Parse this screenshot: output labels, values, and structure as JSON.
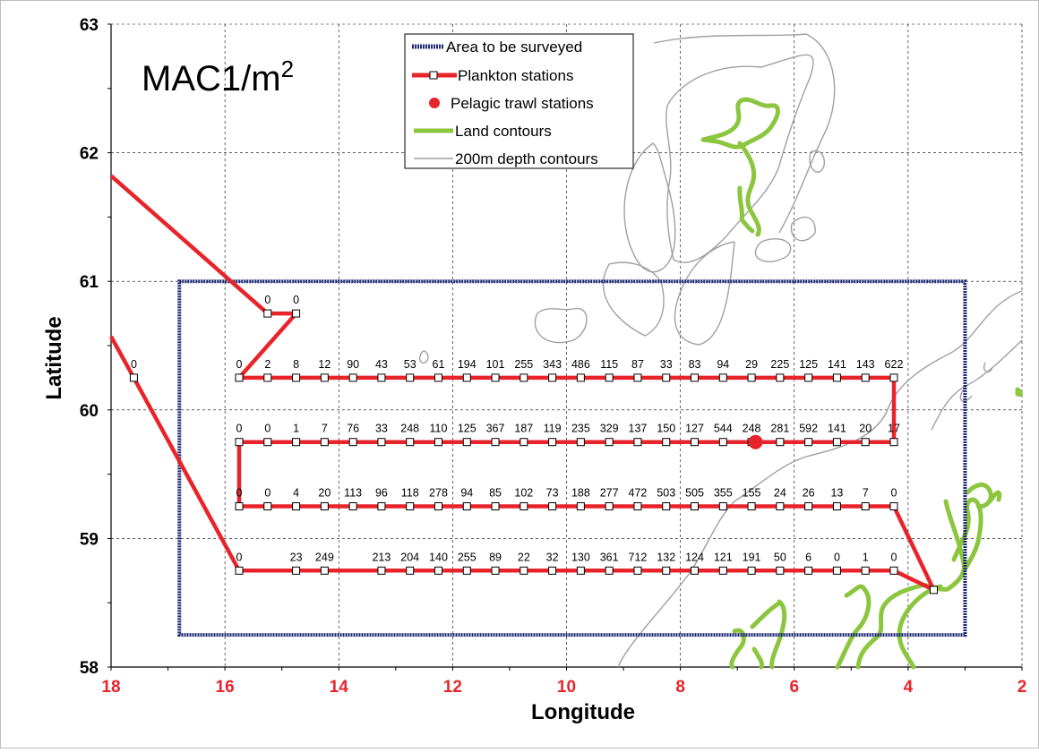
{
  "chart_data": {
    "type": "line",
    "title": "MAC1/m",
    "title_superscript": "2",
    "xlabel": "Longitude",
    "ylabel": "Latitude",
    "xlim": [
      18,
      2
    ],
    "ylim": [
      58,
      63
    ],
    "x_ticks": [
      "18",
      "16",
      "14",
      "12",
      "10",
      "8",
      "6",
      "4",
      "2"
    ],
    "y_ticks": [
      "63",
      "62",
      "61",
      "60",
      "59",
      "58"
    ],
    "grid": true,
    "legend_position": "top-center",
    "colors": {
      "area": "#1f2a78",
      "plankton": "#e8242a",
      "trawl": "#e8242a",
      "land": "#8cc63f",
      "depth": "#a0a0a0",
      "x_tick_color": "#e8242a"
    },
    "legend": [
      {
        "label": "Area to be surveyed",
        "type": "area"
      },
      {
        "label": "Plankton stations",
        "type": "plankton"
      },
      {
        "label": "Pelagic trawl stations",
        "type": "trawl"
      },
      {
        "label": "Land contours",
        "type": "land"
      },
      {
        "label": "200m depth contours",
        "type": "depth"
      }
    ],
    "survey_area": {
      "lon_min": 3.0,
      "lon_max": 16.8,
      "lat_min": 58.25,
      "lat_max": 61.0
    },
    "transects": [
      {
        "lat": 60.75,
        "lon": [
          15.25,
          14.75
        ],
        "values": [
          "0",
          "0"
        ]
      },
      {
        "lat": 60.25,
        "lon": [
          15.75,
          15.25,
          14.75,
          14.25,
          13.75,
          13.25,
          12.75,
          12.25,
          11.75,
          11.25,
          10.75,
          10.25,
          9.75,
          9.25,
          8.75,
          8.25,
          7.75,
          7.25,
          6.75,
          6.25,
          5.75,
          5.25,
          4.75,
          4.25
        ],
        "values": [
          "0",
          "2",
          "8",
          "12",
          "90",
          "43",
          "53",
          "61",
          "194",
          "101",
          "255",
          "343",
          "486",
          "115",
          "87",
          "33",
          "83",
          "94",
          "29",
          "225",
          "125",
          "141",
          "143",
          "622"
        ]
      },
      {
        "lat": 59.75,
        "lon": [
          15.75,
          15.25,
          14.75,
          14.25,
          13.75,
          13.25,
          12.75,
          12.25,
          11.75,
          11.25,
          10.75,
          10.25,
          9.75,
          9.25,
          8.75,
          8.25,
          7.75,
          7.25,
          6.75,
          6.25,
          5.75,
          5.25,
          4.75,
          4.25
        ],
        "values": [
          "0",
          "0",
          "1",
          "7",
          "76",
          "33",
          "248",
          "110",
          "125",
          "367",
          "187",
          "119",
          "235",
          "329",
          "137",
          "150",
          "127",
          "544",
          "248",
          "281",
          "592",
          "141",
          "20",
          "17"
        ]
      },
      {
        "lat": 59.25,
        "lon": [
          15.75,
          15.25,
          14.75,
          14.25,
          13.75,
          13.25,
          12.75,
          12.25,
          11.75,
          11.25,
          10.75,
          10.25,
          9.75,
          9.25,
          8.75,
          8.25,
          7.75,
          7.25,
          6.75,
          6.25,
          5.75,
          5.25,
          4.75,
          4.25
        ],
        "values": [
          "0",
          "0",
          "4",
          "20",
          "113",
          "96",
          "118",
          "278",
          "94",
          "85",
          "102",
          "73",
          "188",
          "277",
          "472",
          "503",
          "505",
          "355",
          "155",
          "24",
          "26",
          "13",
          "7",
          "0"
        ]
      },
      {
        "lat": 58.75,
        "lon": [
          15.75,
          14.75,
          14.25,
          13.25,
          12.75,
          12.25,
          11.75,
          11.25,
          10.75,
          10.25,
          9.75,
          9.25,
          8.75,
          8.25,
          7.75,
          7.25,
          6.75,
          6.25,
          5.75,
          5.25,
          4.75,
          4.25
        ],
        "values": [
          "0",
          "23",
          "249",
          "213",
          "204",
          "140",
          "255",
          "89",
          "22",
          "32",
          "130",
          "361",
          "712",
          "132",
          "124",
          "121",
          "191",
          "50",
          "6",
          "0",
          "1",
          "0"
        ]
      }
    ],
    "extra_stations": [
      {
        "lon": 17.6,
        "lat": 60.25,
        "value": "0"
      },
      {
        "lon": 3.55,
        "lat": 58.6,
        "value": ""
      }
    ],
    "track_lines": [
      [
        [
          18.0,
          61.82
        ],
        [
          15.25,
          60.75
        ],
        [
          14.75,
          60.75
        ],
        [
          15.75,
          60.25
        ],
        [
          4.25,
          60.25
        ],
        [
          4.25,
          59.75
        ],
        [
          15.75,
          59.75
        ],
        [
          15.75,
          59.25
        ],
        [
          4.25,
          59.25
        ],
        [
          3.55,
          58.6
        ],
        [
          4.25,
          58.75
        ],
        [
          15.75,
          58.75
        ],
        [
          17.6,
          60.25
        ],
        [
          18.0,
          60.57
        ]
      ]
    ],
    "trawl_stations": [
      {
        "lon": 6.68,
        "lat": 59.75
      }
    ]
  }
}
